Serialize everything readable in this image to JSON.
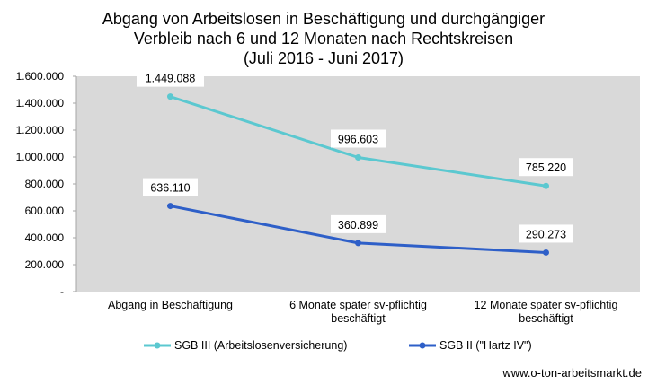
{
  "chart_data": {
    "type": "line",
    "title_lines": [
      "Abgang von Arbeitslosen in Beschäftigung und durchgängiger",
      "Verbleib nach 6 und 12 Monaten nach Rechtskreisen",
      "(Juli 2016 - Juni 2017)"
    ],
    "categories": [
      [
        "Abgang in Beschäftigung"
      ],
      [
        "6 Monate später sv-pflichtig",
        "beschäftigt"
      ],
      [
        "12 Monate später sv-pflichtig",
        "beschäftigt"
      ]
    ],
    "series": [
      {
        "name": "SGB III (Arbeitslosenversicherung)",
        "color": "#5bc8d0",
        "values": [
          1449088,
          996603,
          785220
        ],
        "labels": [
          "1.449.088",
          "996.603",
          "785.220"
        ]
      },
      {
        "name": "SGB II (\"Hartz IV\")",
        "color": "#2e5fc8",
        "values": [
          636110,
          360899,
          290273
        ],
        "labels": [
          "636.110",
          "360.899",
          "290.273"
        ]
      }
    ],
    "ylim": [
      0,
      1600000
    ],
    "yticks": [
      "-",
      "200.000",
      "400.000",
      "600.000",
      "800.000",
      "1.000.000",
      "1.200.000",
      "1.400.000",
      "1.600.000"
    ],
    "grid": false,
    "plot_background": "#d9d9d9",
    "legend_position": "bottom"
  },
  "source_text": "www.o-ton-arbeitsmarkt.de"
}
